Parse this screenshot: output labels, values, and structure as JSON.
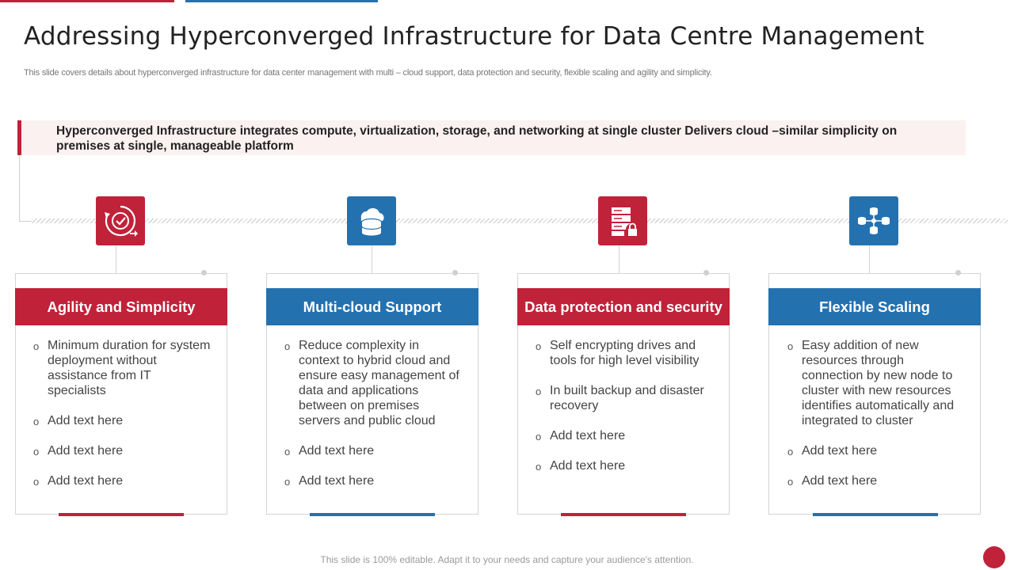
{
  "title": "Addressing Hyperconverged Infrastructure for Data Centre Management",
  "subtitle": "This slide covers details about hyperconverged infrastructure for data center management with multi – cloud support, data protection and security, flexible scaling and agility and simplicity.",
  "callout": "Hyperconverged Infrastructure integrates compute, virtualization, storage, and networking at single cluster Delivers cloud –similar simplicity on premises at single, manageable platform",
  "colors": {
    "red": "#c0223a",
    "blue": "#2471b0"
  },
  "cards": [
    {
      "icon": "agility-cycle-icon",
      "heading": "Agility and Simplicity",
      "items": [
        "Minimum duration for system deployment without assistance from IT specialists",
        "Add text here",
        "Add text here",
        "Add text here"
      ]
    },
    {
      "icon": "cloud-database-icon",
      "heading": "Multi-cloud Support",
      "items": [
        "Reduce complexity in context to hybrid cloud and ensure easy management of data and applications between on premises servers and public cloud",
        "Add text here",
        "Add text here"
      ]
    },
    {
      "icon": "server-lock-icon",
      "heading": "Data protection and security",
      "items": [
        "Self encrypting drives and tools for high level visibility",
        "In built backup and disaster recovery",
        "Add text here",
        "Add text here"
      ]
    },
    {
      "icon": "database-network-icon",
      "heading": "Flexible Scaling",
      "items": [
        "Easy addition of new resources through connection by new node to cluster with new resources identifies automatically and integrated to cluster",
        "Add text here",
        "Add text here"
      ]
    }
  ],
  "footer": "This slide is 100% editable. Adapt it to your needs and capture your audience's attention."
}
